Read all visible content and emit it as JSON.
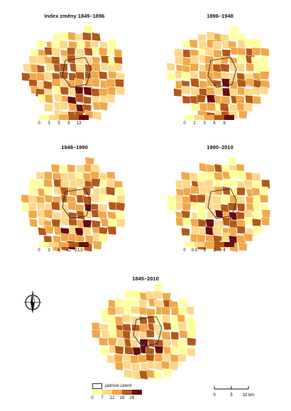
{
  "maps": [
    {
      "title": "Index změny 1845–1896",
      "legend_colors": [
        "#ffff99",
        "#fdd88a",
        "#f0a848",
        "#b45818",
        "#6a0c0c"
      ],
      "legend_ticks": [
        "0",
        "3",
        "5",
        "8",
        "13"
      ]
    },
    {
      "title": "1896–1948",
      "legend_colors": [
        "#ffff99",
        "#fdd88a",
        "#f0a848",
        "#b45818",
        "#6a0c0c"
      ],
      "legend_ticks": [
        "0",
        "2",
        "3",
        "6",
        "9"
      ]
    },
    {
      "title": "1948–1990",
      "legend_colors": [
        "#ffff99",
        "#fdd88a",
        "#f0a848",
        "#b45818",
        "#6a0c0c"
      ],
      "legend_ticks": [
        "0",
        "3",
        "6",
        "12",
        "21,5"
      ]
    },
    {
      "title": "1990–2010",
      "legend_colors": [
        "#ffff99",
        "#fdd88a",
        "#f0a848",
        "#b45818",
        "#6a0c0c"
      ],
      "legend_ticks": [
        "0",
        "0,5",
        "1",
        "2",
        "4"
      ]
    },
    {
      "title": "1845–2010",
      "legend_colors": [
        "#ffff99",
        "#fdd88a",
        "#f0a848",
        "#b45818",
        "#6a0c0c"
      ],
      "legend_ticks": [
        "0",
        "7",
        "12",
        "18",
        "26"
      ]
    }
  ],
  "core_legend_label": "jádrové území",
  "scalebar": {
    "ticks": [
      "0",
      "5",
      "10 km"
    ]
  },
  "compass": {
    "icon": "north-arrow-icon",
    "label": "N"
  }
}
